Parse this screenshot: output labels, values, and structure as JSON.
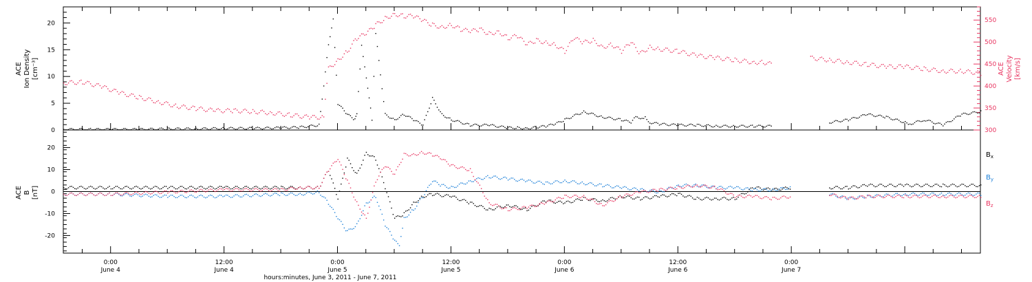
{
  "colors": {
    "black": "#000000",
    "pink": "#e8335f",
    "blue": "#1a7fd8"
  },
  "chart_data": [
    {
      "type": "scatter",
      "panel": "top",
      "ylabel_lines": [
        "ACE",
        "Ion Density",
        "[cm⁻³]"
      ],
      "ylim": [
        0,
        23
      ],
      "yticks": [
        0,
        5,
        10,
        15,
        20
      ],
      "ylabel_right_lines": [
        "ACE",
        "Velocity",
        "[km/s]"
      ],
      "y2lim": [
        300,
        580
      ],
      "y2ticks": [
        300,
        350,
        400,
        450,
        500,
        550
      ],
      "xlim_hours": [
        -5,
        92
      ],
      "series": [
        {
          "key": "density",
          "axis": "left",
          "color": "#000000",
          "x": [
            -5,
            -2,
            0,
            3,
            6,
            9,
            12,
            15,
            18,
            20,
            22,
            23,
            23.5,
            24,
            25,
            25.8,
            26,
            26.5,
            27,
            27.6,
            28,
            29,
            30,
            31,
            32,
            33,
            34,
            35,
            36,
            38,
            40,
            42,
            43,
            44,
            45,
            46,
            47,
            48,
            50,
            52,
            54,
            55,
            55.5,
            56,
            56.5,
            57,
            58,
            60,
            62,
            64,
            66,
            68,
            70,
            72,
            73,
            73.5,
            76,
            78,
            80,
            82,
            84,
            84.5,
            86,
            88,
            90,
            92,
            94,
            95,
            96,
            96.5,
            97
          ],
          "y": [
            0.2,
            0.2,
            0.2,
            0.2,
            0.3,
            0.3,
            0.4,
            0.4,
            0.5,
            0.6,
            1.0,
            16,
            21,
            5,
            3,
            2,
            3,
            16,
            10,
            2,
            18,
            3,
            2,
            3,
            2,
            1,
            6,
            3,
            2,
            1,
            1,
            0.5,
            0.5,
            0.4,
            0.6,
            0.8,
            1.2,
            2.0,
            3.5,
            2.5,
            2.0,
            1.5,
            2.5,
            2.0,
            2.5,
            1.5,
            1.2,
            1.0,
            1.0,
            0.8,
            0.8,
            0.8,
            0.8,
            null,
            null,
            null,
            1.5,
            2.0,
            3.0,
            2.5,
            1.5,
            1.2,
            2.0,
            1.0,
            3.0,
            3.5,
            3.5,
            3.2,
            3.0,
            3.0,
            3.0
          ]
        },
        {
          "key": "velocity",
          "axis": "right",
          "color": "#e8335f",
          "x": [
            -5,
            -3,
            -1,
            1,
            3,
            5,
            7,
            9,
            11,
            13,
            15,
            17,
            19,
            21,
            22.5,
            23,
            24,
            25,
            26,
            27,
            28,
            29,
            30,
            31,
            32,
            33,
            34,
            35,
            36,
            37,
            38,
            39,
            40,
            41,
            42,
            43,
            44,
            45,
            46,
            47,
            48,
            49,
            50,
            51,
            52,
            53,
            54,
            55,
            56,
            57,
            58,
            60,
            62,
            64,
            66,
            68,
            69,
            70,
            73,
            74,
            76,
            78,
            80,
            82,
            84,
            86,
            88,
            90,
            92,
            94,
            96,
            97
          ],
          "y": [
            408,
            410,
            400,
            385,
            375,
            365,
            355,
            350,
            345,
            345,
            343,
            340,
            335,
            330,
            330,
            440,
            460,
            480,
            510,
            520,
            540,
            555,
            565,
            560,
            560,
            550,
            540,
            535,
            540,
            530,
            525,
            530,
            520,
            525,
            510,
            515,
            495,
            505,
            500,
            495,
            480,
            510,
            500,
            505,
            490,
            495,
            480,
            500,
            475,
            490,
            485,
            480,
            470,
            465,
            460,
            455,
            455,
            450,
            null,
            465,
            460,
            455,
            450,
            445,
            445,
            440,
            435,
            435,
            430,
            420,
            415,
            410
          ]
        }
      ]
    },
    {
      "type": "scatter",
      "panel": "bottom",
      "ylabel_lines": [
        "ACE",
        "B",
        "[nT]"
      ],
      "ylim": [
        -28,
        28
      ],
      "yticks": [
        -20,
        -10,
        0,
        10,
        20
      ],
      "xlim_hours": [
        -5,
        92
      ],
      "legend": [
        {
          "label": "B",
          "sub": "x",
          "color": "#000000"
        },
        {
          "label": "B",
          "sub": "y",
          "color": "#1a7fd8"
        },
        {
          "label": "B",
          "sub": "z",
          "color": "#e8335f"
        }
      ],
      "series": [
        {
          "key": "Bx",
          "color": "#000000",
          "x": [
            -5,
            0,
            6,
            12,
            18,
            20,
            22,
            23,
            24,
            25,
            26,
            27,
            28,
            29,
            30,
            31,
            32,
            33,
            34,
            36,
            38,
            40,
            42,
            44,
            46,
            48,
            50,
            52,
            54,
            56,
            58,
            60,
            62,
            64,
            66,
            68,
            70,
            72,
            73,
            76,
            78,
            80,
            84,
            88,
            92,
            96,
            97
          ],
          "y": [
            2,
            2,
            2,
            2,
            2,
            2,
            2,
            10,
            -3,
            15,
            8,
            18,
            15,
            2,
            -12,
            -10,
            -5,
            -2,
            -1,
            -2,
            -5,
            -8,
            -6,
            -8,
            -4,
            -5,
            -3,
            -4,
            -2,
            -3,
            -2,
            -1,
            -3,
            -3,
            -3,
            2,
            1,
            2,
            null,
            2,
            2,
            3,
            3,
            3,
            3,
            3,
            3
          ]
        },
        {
          "key": "By",
          "color": "#1a7fd8",
          "x": [
            -5,
            0,
            6,
            12,
            18,
            20,
            22,
            23,
            24,
            25,
            26,
            27,
            28,
            29,
            30,
            30.5,
            31,
            32,
            33,
            34,
            35,
            36,
            38,
            40,
            42,
            44,
            46,
            48,
            50,
            52,
            54,
            56,
            58,
            60,
            62,
            64,
            66,
            68,
            70,
            72,
            73,
            76,
            78,
            80,
            84,
            88,
            92,
            96,
            97
          ],
          "y": [
            -1,
            -1,
            -2,
            -2,
            -1,
            -1,
            0,
            -5,
            -12,
            -18,
            -15,
            -5,
            -2,
            -15,
            -22,
            -25,
            -12,
            -8,
            -2,
            5,
            3,
            2,
            5,
            7,
            6,
            5,
            4,
            5,
            4,
            3,
            2,
            1,
            0,
            3,
            3,
            2,
            2,
            1,
            1,
            2,
            null,
            -1,
            -3,
            -2,
            -1,
            -1,
            -1,
            0,
            0
          ]
        },
        {
          "key": "Bz",
          "color": "#e8335f",
          "x": [
            -5,
            0,
            6,
            12,
            18,
            20,
            22,
            23,
            24,
            25,
            26,
            27,
            28,
            29,
            30,
            31,
            32,
            33,
            34,
            35,
            36,
            38,
            40,
            42,
            44,
            46,
            48,
            50,
            52,
            54,
            56,
            58,
            60,
            62,
            64,
            66,
            68,
            70,
            72,
            73,
            76,
            78,
            80,
            84,
            88,
            92,
            96,
            97
          ],
          "y": [
            -1,
            -1,
            0,
            1,
            1,
            2,
            2,
            10,
            15,
            5,
            -5,
            -12,
            5,
            12,
            8,
            17,
            17,
            18,
            17,
            15,
            12,
            10,
            -5,
            -8,
            -7,
            -5,
            -2,
            -2,
            -6,
            -2,
            0,
            1,
            2,
            3,
            2,
            -2,
            -2,
            -3,
            -2,
            null,
            -1,
            -3,
            -2,
            -2,
            -2,
            -2,
            -1,
            0
          ]
        }
      ]
    }
  ],
  "xaxis": {
    "ticks": [
      {
        "hour": 0,
        "time": "0:00",
        "date": "June 4"
      },
      {
        "hour": 12,
        "time": "12:00",
        "date": "June 4"
      },
      {
        "hour": 24,
        "time": "0:00",
        "date": "June 5"
      },
      {
        "hour": 36,
        "time": "12:00",
        "date": "June 5"
      },
      {
        "hour": 48,
        "time": "0:00",
        "date": "June 6"
      },
      {
        "hour": 60,
        "time": "12:00",
        "date": "June 6"
      },
      {
        "hour": 72,
        "time": "0:00",
        "date": "June 7"
      }
    ],
    "title": "hours:minutes, June  3, 2011 - June  7, 2011"
  }
}
